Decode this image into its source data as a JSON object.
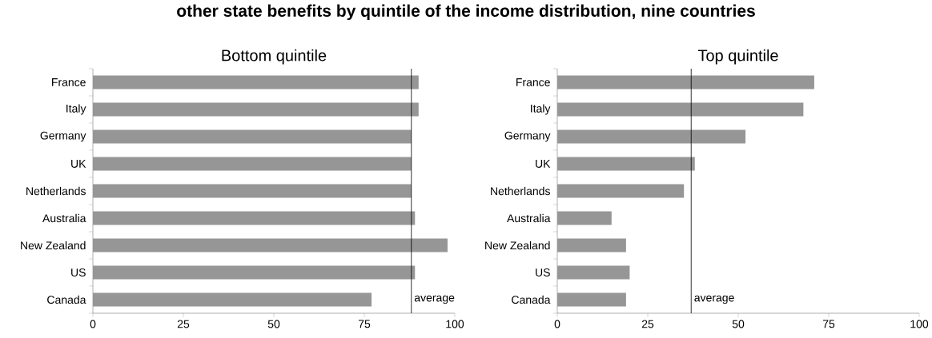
{
  "chart_data": [
    {
      "type": "bar",
      "orientation": "horizontal",
      "title": "Bottom quintile",
      "annotations": [
        "other state benefits by quintile of the income distribution, nine countries"
      ],
      "categories": [
        "France",
        "Italy",
        "Germany",
        "UK",
        "Netherlands",
        "Australia",
        "New Zealand",
        "US",
        "Canada"
      ],
      "values": [
        90,
        90,
        88,
        88,
        88,
        89,
        98,
        89,
        77
      ],
      "color": "#969696",
      "xlim": [
        0,
        100
      ],
      "xticks": [
        0,
        25,
        50,
        75,
        100
      ],
      "ref_lines": [
        {
          "axis": "x",
          "value": 88,
          "label": "average",
          "color": "#000000"
        }
      ]
    },
    {
      "type": "bar",
      "orientation": "horizontal",
      "title": "Top quintile",
      "categories": [
        "France",
        "Italy",
        "Germany",
        "UK",
        "Netherlands",
        "Australia",
        "New Zealand",
        "US",
        "Canada"
      ],
      "values": [
        71,
        68,
        52,
        38,
        35,
        15,
        19,
        20,
        19
      ],
      "color": "#969696",
      "xlim": [
        0,
        100
      ],
      "xticks": [
        0,
        25,
        50,
        75,
        100
      ],
      "ref_lines": [
        {
          "axis": "x",
          "value": 37,
          "label": "average",
          "color": "#000000"
        }
      ]
    }
  ]
}
